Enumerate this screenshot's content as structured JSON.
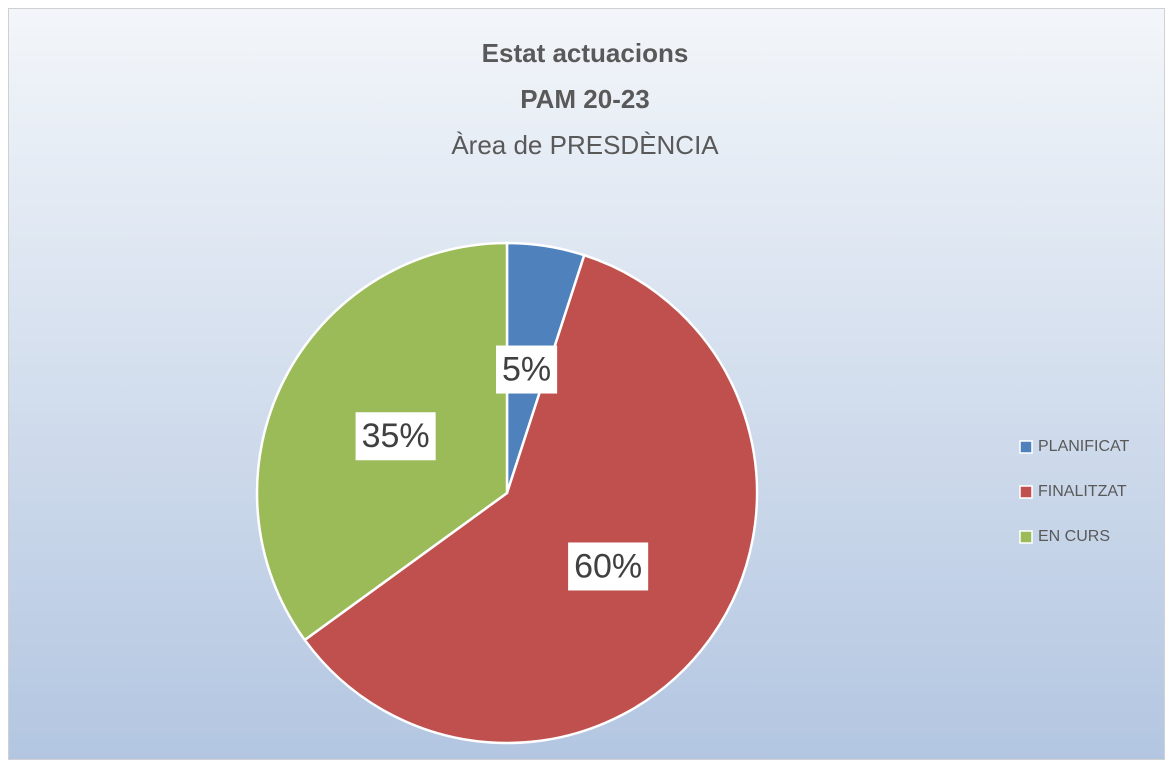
{
  "chart_data": {
    "type": "pie",
    "title": [
      "Estat actuacions",
      "PAM 20-23"
    ],
    "subtitle": "Àrea de PRESDÈNCIA",
    "categories": [
      "PLANIFICAT",
      "FINALITZAT",
      "EN CURS"
    ],
    "values": [
      5,
      60,
      35
    ],
    "value_labels": [
      "5%",
      "60%",
      "35%"
    ],
    "colors": [
      "#4f81bd",
      "#c0504d",
      "#9bbb59"
    ],
    "legend": "right"
  }
}
